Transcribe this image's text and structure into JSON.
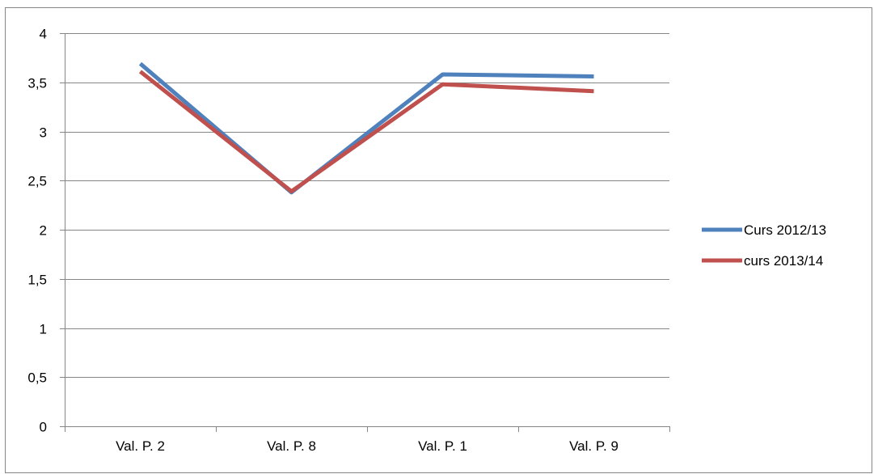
{
  "chart_data": {
    "type": "line",
    "title": "",
    "xlabel": "",
    "ylabel": "",
    "categories": [
      "Val. P. 2",
      "Val. P. 8",
      "Val. P. 1",
      "Val. P. 9"
    ],
    "ylim": [
      0,
      4
    ],
    "ytick_step": 0.5,
    "ytick_labels": [
      "0",
      "0,5",
      "1",
      "1,5",
      "2",
      "2,5",
      "3",
      "3,5",
      "4"
    ],
    "grid": "horizontal",
    "legend_position": "right",
    "series": [
      {
        "name": "Curs 2012/13",
        "color": "#4F81BD",
        "values": [
          3.69,
          2.38,
          3.58,
          3.56
        ]
      },
      {
        "name": "curs 2013/14",
        "color": "#C0504D",
        "values": [
          3.61,
          2.39,
          3.48,
          3.41
        ]
      }
    ]
  }
}
